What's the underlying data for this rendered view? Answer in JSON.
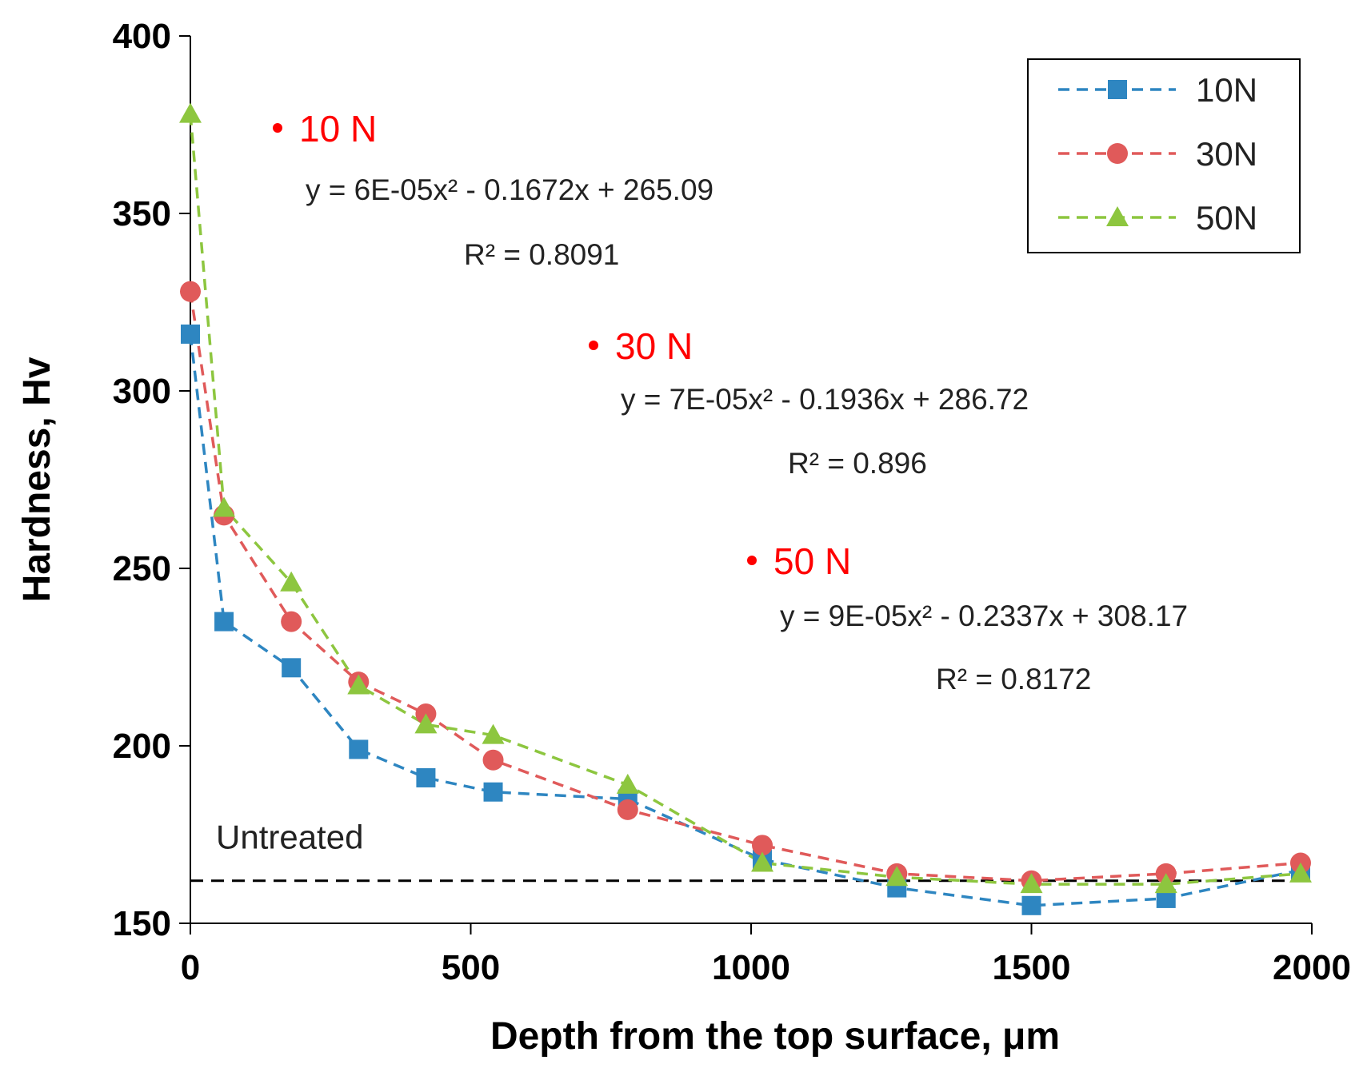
{
  "chart_data": {
    "type": "line",
    "xlabel": "Depth from the top surface, μm",
    "ylabel": "Hardness, Hv",
    "xlim": [
      0,
      2000
    ],
    "ylim": [
      150,
      400
    ],
    "xticks": [
      0,
      500,
      1000,
      1500,
      2000
    ],
    "yticks": [
      150,
      200,
      250,
      300,
      350,
      400
    ],
    "series": [
      {
        "name": "10N",
        "color": "#2e86c1",
        "marker": "square",
        "x": [
          0,
          60,
          180,
          300,
          420,
          540,
          780,
          1020,
          1260,
          1500,
          1740,
          1980
        ],
        "y": [
          316,
          235,
          222,
          199,
          191,
          187,
          185,
          168,
          160,
          155,
          157,
          165
        ]
      },
      {
        "name": "30N",
        "color": "#e05a5a",
        "marker": "circle",
        "x": [
          0,
          60,
          180,
          300,
          420,
          540,
          780,
          1020,
          1260,
          1500,
          1740,
          1980
        ],
        "y": [
          328,
          265,
          235,
          218,
          209,
          196,
          182,
          172,
          164,
          162,
          164,
          167
        ]
      },
      {
        "name": "50N",
        "color": "#8dc63f",
        "marker": "triangle",
        "x": [
          0,
          60,
          180,
          300,
          420,
          540,
          780,
          1020,
          1260,
          1500,
          1740,
          1980
        ],
        "y": [
          378,
          267,
          246,
          217,
          206,
          203,
          189,
          167,
          163,
          161,
          161,
          164
        ]
      }
    ],
    "baseline": {
      "label": "Untreated",
      "y": 162
    },
    "annotations": [
      {
        "title": "10 N",
        "equation": "y = 6E-05x² - 0.1672x + 265.09",
        "r2": "R² = 0.8091"
      },
      {
        "title": "30 N",
        "equation": "y = 7E-05x² - 0.1936x + 286.72",
        "r2": "R² = 0.896"
      },
      {
        "title": "50 N",
        "equation": "y = 9E-05x² - 0.2337x + 308.17",
        "r2": "R² = 0.8172"
      }
    ],
    "legend_position": "top-right"
  }
}
